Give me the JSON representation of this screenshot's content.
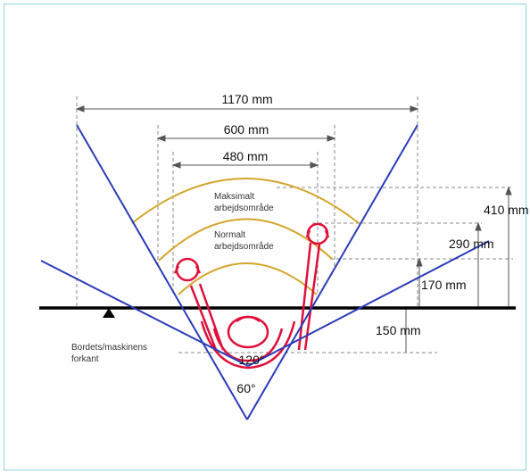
{
  "dimensions": {
    "width_total": "1170 mm",
    "width_mid": "600 mm",
    "width_inner": "480 mm",
    "depth_max": "410 mm",
    "depth_normal": "290 mm",
    "depth_170": "170 mm",
    "depth_150": "150 mm"
  },
  "areas": {
    "max_line1": "Maksimalt",
    "max_line2": "arbejdsområde",
    "normal_line1": "Normalt",
    "normal_line2": "arbejdsområde"
  },
  "angles": {
    "wide": "120°",
    "narrow": "60°"
  },
  "edge_label": {
    "line1": "Bordets/maskinens",
    "line2": "forkant"
  },
  "colors": {
    "arc": "#d4a52a",
    "vision_lines": "#2b3bb8",
    "figure": "#e0103a",
    "table_edge": "#000000",
    "dim_lines": "#888888",
    "frame": "#8fd3e0"
  }
}
